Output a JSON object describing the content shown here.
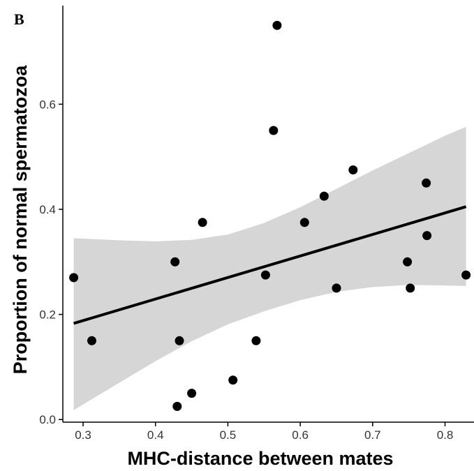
{
  "chart_data": {
    "type": "scatter",
    "title": "",
    "panel_label": "B",
    "xlabel": "MHC-distance between mates",
    "ylabel": "Proportion of normal spermatozoa",
    "xlim": [
      0.272,
      0.84
    ],
    "ylim": [
      -0.005,
      0.785
    ],
    "x_ticks": [
      0.3,
      0.4,
      0.5,
      0.6,
      0.7,
      0.8
    ],
    "x_tick_labels": [
      "0.3",
      "0.4",
      "0.5",
      "0.6",
      "0.7",
      "0.8"
    ],
    "y_ticks": [
      0.0,
      0.2,
      0.4,
      0.6
    ],
    "y_tick_labels": [
      "0.0",
      "0.2",
      "0.4",
      "0.6"
    ],
    "grid": false,
    "legend": "none",
    "points": {
      "x": [
        0.287,
        0.312,
        0.427,
        0.43,
        0.433,
        0.45,
        0.465,
        0.507,
        0.539,
        0.552,
        0.563,
        0.568,
        0.606,
        0.633,
        0.65,
        0.673,
        0.748,
        0.752,
        0.774,
        0.775,
        0.829
      ],
      "y": [
        0.27,
        0.15,
        0.3,
        0.025,
        0.15,
        0.05,
        0.375,
        0.075,
        0.15,
        0.275,
        0.55,
        0.75,
        0.375,
        0.425,
        0.25,
        0.475,
        0.3,
        0.25,
        0.45,
        0.35,
        0.275
      ]
    },
    "fit_line": {
      "x": [
        0.287,
        0.829
      ],
      "y": [
        0.183,
        0.405
      ]
    },
    "confidence_band": {
      "x": [
        0.287,
        0.35,
        0.4,
        0.45,
        0.5,
        0.55,
        0.6,
        0.65,
        0.7,
        0.75,
        0.8,
        0.829
      ],
      "upper": [
        0.345,
        0.341,
        0.339,
        0.342,
        0.352,
        0.374,
        0.404,
        0.439,
        0.474,
        0.507,
        0.54,
        0.557
      ],
      "lower": [
        0.018,
        0.07,
        0.111,
        0.149,
        0.181,
        0.206,
        0.227,
        0.243,
        0.252,
        0.256,
        0.255,
        0.254
      ]
    },
    "colors": {
      "points": "#000000",
      "line": "#000000",
      "band": "#d6d6d6",
      "axis": "#000000",
      "tick_text": "#333333"
    }
  }
}
